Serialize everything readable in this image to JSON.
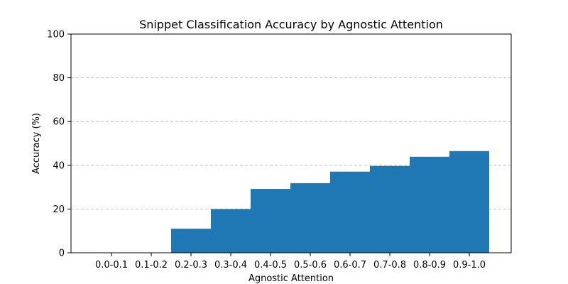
{
  "chart_data": {
    "type": "bar",
    "title": "Snippet Classification Accuracy by Agnostic Attention",
    "xlabel": "Agnostic Attention",
    "ylabel": "Accuracy (%)",
    "categories": [
      "0.0-0.1",
      "0.1-0.2",
      "0.2-0.3",
      "0.3-0.4",
      "0.4-0.5",
      "0.5-0.6",
      "0.6-0.7",
      "0.7-0.8",
      "0.8-0.9",
      "0.9-1.0"
    ],
    "values": [
      0,
      0,
      11,
      20,
      29.2,
      31.8,
      37.1,
      39.7,
      43.9,
      46.5
    ],
    "ylim": [
      0,
      100
    ],
    "yticks": [
      "0",
      "20",
      "40",
      "60",
      "80",
      "100"
    ],
    "grid": "y-dashed",
    "bar_color": "#1f77b4"
  }
}
